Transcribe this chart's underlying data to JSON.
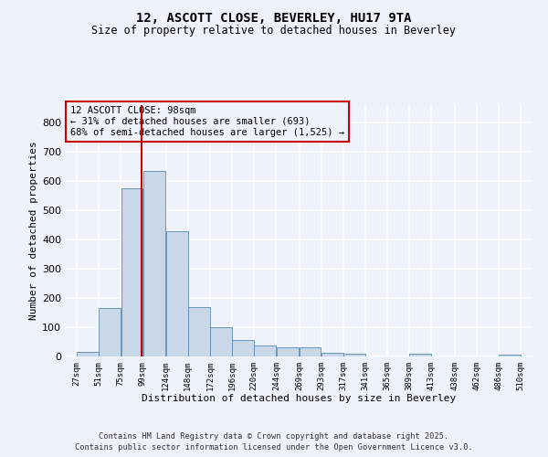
{
  "title1": "12, ASCOTT CLOSE, BEVERLEY, HU17 9TA",
  "title2": "Size of property relative to detached houses in Beverley",
  "xlabel": "Distribution of detached houses by size in Beverley",
  "ylabel": "Number of detached properties",
  "bar_left_edges": [
    27,
    51,
    75,
    99,
    124,
    148,
    172,
    196,
    220,
    244,
    269,
    293,
    317,
    341,
    365,
    389,
    413,
    438,
    462,
    486
  ],
  "bar_widths": [
    24,
    24,
    24,
    25,
    24,
    24,
    24,
    24,
    24,
    25,
    24,
    24,
    24,
    24,
    24,
    24,
    25,
    24,
    24,
    24
  ],
  "bar_heights": [
    15,
    165,
    575,
    635,
    430,
    170,
    100,
    55,
    38,
    30,
    30,
    12,
    10,
    0,
    0,
    8,
    0,
    0,
    0,
    6
  ],
  "bar_color": "#c8d8e8",
  "bar_edge_color": "#5a8ab0",
  "property_line_x": 98,
  "property_line_color": "#cc0000",
  "annotation_text": "12 ASCOTT CLOSE: 98sqm\n← 31% of detached houses are smaller (693)\n68% of semi-detached houses are larger (1,525) →",
  "annotation_box_color": "#cc0000",
  "xlim": [
    15,
    522
  ],
  "ylim": [
    0,
    860
  ],
  "yticks": [
    0,
    100,
    200,
    300,
    400,
    500,
    600,
    700,
    800
  ],
  "xtick_labels": [
    "27sqm",
    "51sqm",
    "75sqm",
    "99sqm",
    "124sqm",
    "148sqm",
    "172sqm",
    "196sqm",
    "220sqm",
    "244sqm",
    "269sqm",
    "293sqm",
    "317sqm",
    "341sqm",
    "365sqm",
    "389sqm",
    "413sqm",
    "438sqm",
    "462sqm",
    "486sqm",
    "510sqm"
  ],
  "xtick_positions": [
    27,
    51,
    75,
    99,
    124,
    148,
    172,
    196,
    220,
    244,
    269,
    293,
    317,
    341,
    365,
    389,
    413,
    438,
    462,
    486,
    510
  ],
  "bg_color": "#eef2fa",
  "grid_color": "#ffffff",
  "footer1": "Contains HM Land Registry data © Crown copyright and database right 2025.",
  "footer2": "Contains public sector information licensed under the Open Government Licence v3.0."
}
